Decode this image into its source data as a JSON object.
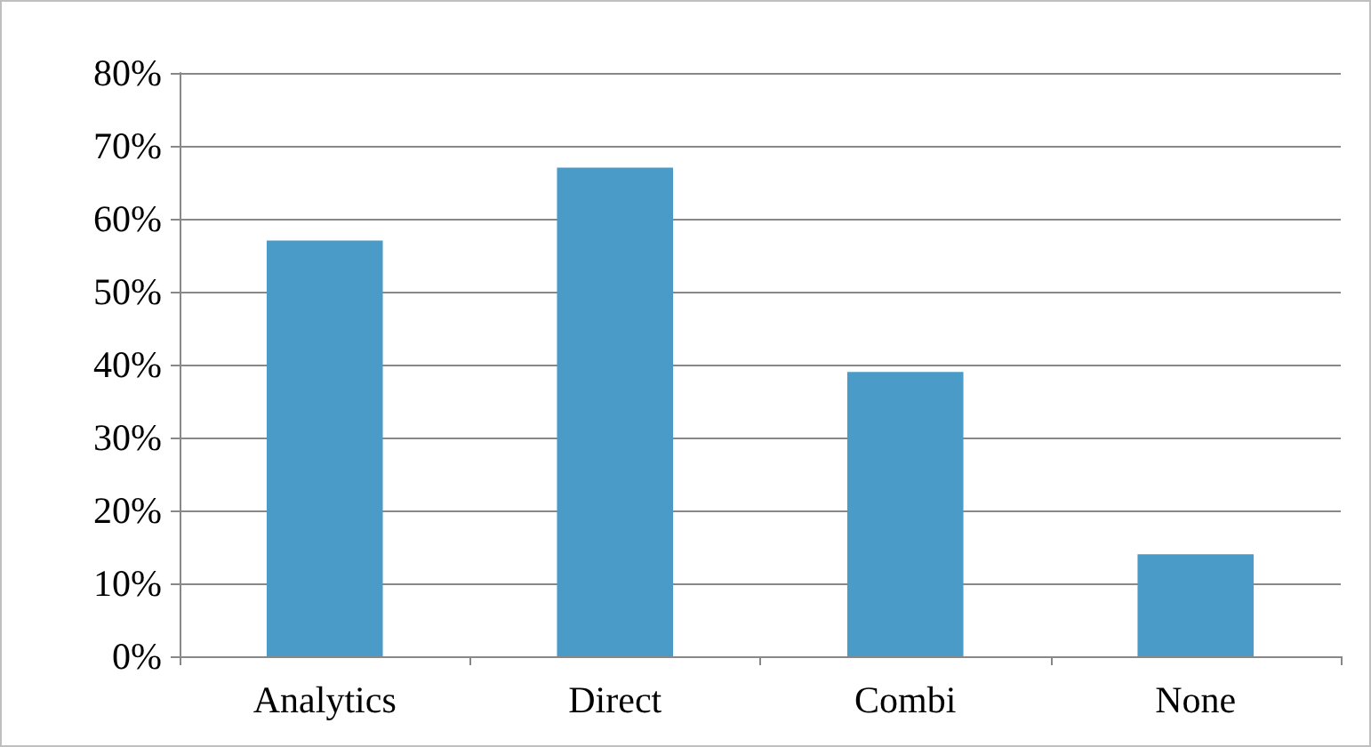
{
  "chart_data": {
    "type": "bar",
    "categories": [
      "Analytics",
      "Direct",
      "Combi",
      "None"
    ],
    "values": [
      57,
      67,
      39,
      14
    ],
    "color": "#4a9bc8",
    "ylim": [
      0,
      80
    ],
    "yticks": [
      {
        "value": 0,
        "label": "0%"
      },
      {
        "value": 10,
        "label": "10%"
      },
      {
        "value": 20,
        "label": "20%"
      },
      {
        "value": 30,
        "label": "30%"
      },
      {
        "value": 40,
        "label": "40%"
      },
      {
        "value": 50,
        "label": "50%"
      },
      {
        "value": 60,
        "label": "60%"
      },
      {
        "value": 70,
        "label": "70%"
      },
      {
        "value": 80,
        "label": "80%"
      }
    ],
    "grid": "y"
  }
}
